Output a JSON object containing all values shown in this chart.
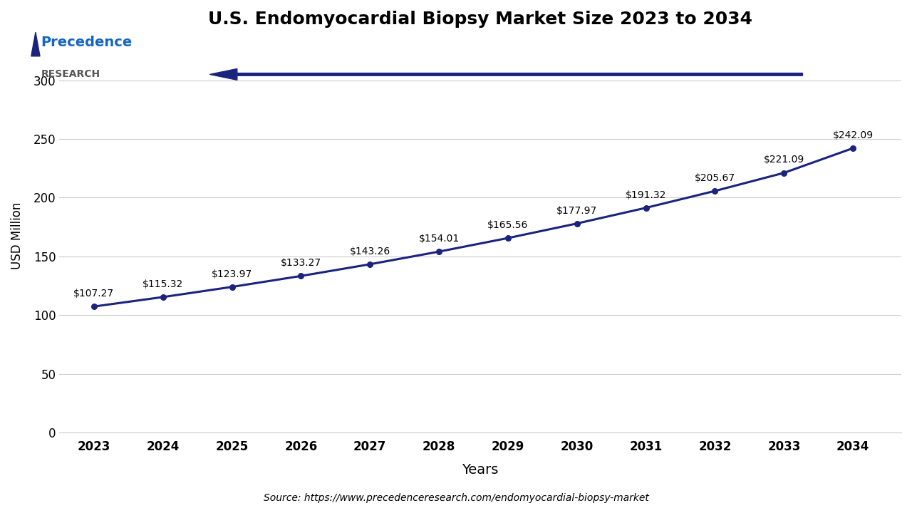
{
  "title": "U.S. Endomyocardial Biopsy Market Size 2023 to 2034",
  "xlabel": "Years",
  "ylabel": "USD Million",
  "years": [
    2023,
    2024,
    2025,
    2026,
    2027,
    2028,
    2029,
    2030,
    2031,
    2032,
    2033,
    2034
  ],
  "values": [
    107.27,
    115.32,
    123.97,
    133.27,
    143.26,
    154.01,
    165.56,
    177.97,
    191.32,
    205.67,
    221.09,
    242.09
  ],
  "labels": [
    "$107.27",
    "$115.32",
    "$123.97",
    "$133.27",
    "$143.26",
    "$154.01",
    "$165.56",
    "$177.97",
    "$191.32",
    "$205.67",
    "$221.09",
    "$242.09"
  ],
  "line_color": "#1a237e",
  "marker_color": "#1a237e",
  "background_color": "#ffffff",
  "grid_color": "#cccccc",
  "title_fontsize": 18,
  "label_fontsize": 12,
  "tick_fontsize": 12,
  "annotation_fontsize": 10,
  "yticks": [
    0,
    50,
    100,
    150,
    200,
    250,
    300
  ],
  "ylim": [
    0,
    335
  ],
  "source_text": "Source: https://www.precedenceresearch.com/endomyocardial-biopsy-market",
  "logo_text_precedence": "Precedence",
  "logo_text_research": "RESEARCH",
  "arrow_color": "#1a237e",
  "precedence_color": "#1565C0",
  "research_color": "#555555"
}
